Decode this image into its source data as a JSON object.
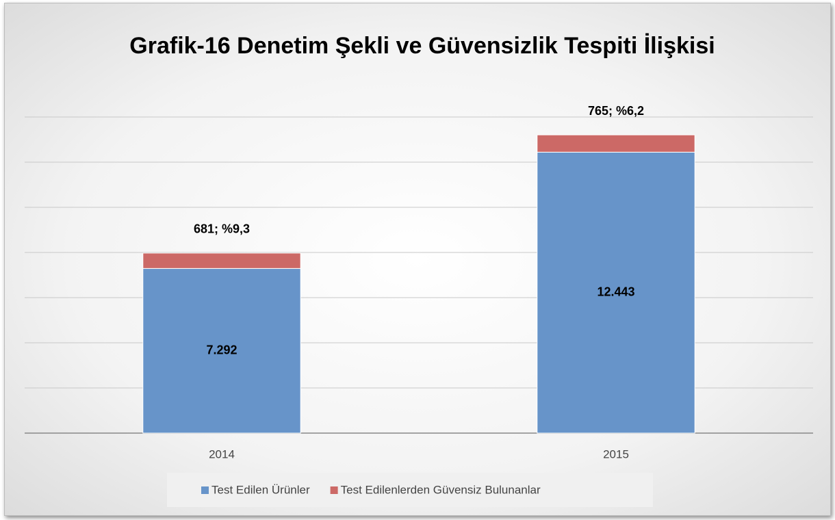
{
  "chart_data": {
    "type": "stacked_bar",
    "title": "Grafik-16 Denetim Şekli ve Güvensizlik Tespiti İlişkisi",
    "categories": [
      "2014",
      "2015"
    ],
    "series": [
      {
        "name": "Test Edilen Ürünler",
        "color": "#6794c9",
        "values": [
          7292,
          12443
        ],
        "value_labels": [
          "7.292",
          "12.443"
        ]
      },
      {
        "name": "Test Edilenlerden Güvensiz Bulunanlar",
        "color": "#cc6966",
        "values": [
          681,
          765
        ],
        "value_labels": [
          "681; %9,3",
          "765; %6,2"
        ]
      }
    ],
    "ylim": [
      0,
      14000
    ],
    "yticks": [
      0,
      2000,
      4000,
      6000,
      8000,
      10000,
      12000,
      14000
    ],
    "grid": true,
    "legend": "bottom"
  }
}
